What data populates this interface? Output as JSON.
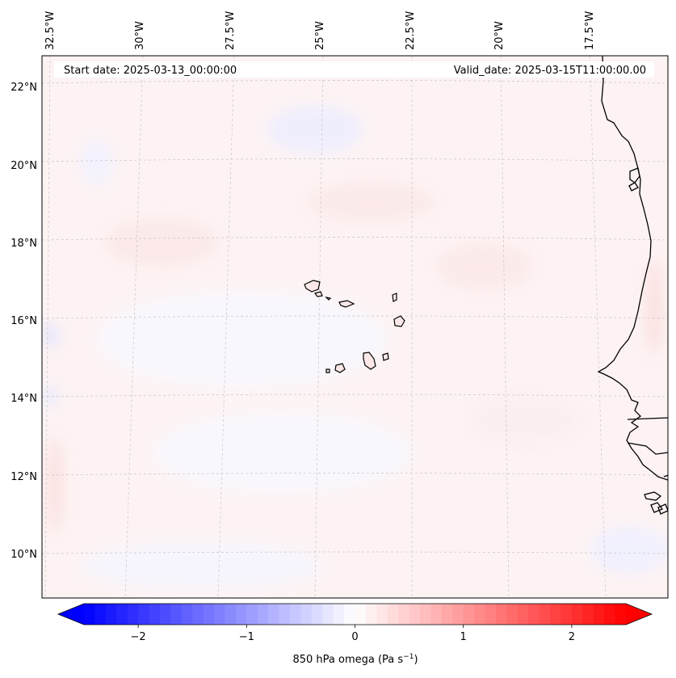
{
  "map": {
    "start_date_label": "Start date: 2025-03-13_00:00:00",
    "valid_date_label": "Valid_date: 2025-03-15T11:00:00.00",
    "lon_labels": [
      "32.5°W",
      "30°W",
      "27.5°W",
      "25°W",
      "22.5°W",
      "20°W",
      "17.5°W"
    ],
    "lat_labels": [
      "22°N",
      "20°N",
      "18°N",
      "16°N",
      "14°N",
      "12°N",
      "10°N"
    ],
    "coastline_color": "#000000",
    "gridline_color": "#bbbbbb"
  },
  "colorbar": {
    "label_prefix": "850 hPa omega (Pa s",
    "label_exp": "−1",
    "label_suffix": ")",
    "ticks": [
      "−2",
      "−1",
      "0",
      "1",
      "2"
    ],
    "tick_values": [
      -2,
      -1,
      0,
      1,
      2
    ],
    "vmin": -2.5,
    "vmax": 2.5,
    "cmap": "bwr",
    "low_color": "#0000ff",
    "mid_color": "#ffffff",
    "high_color": "#ff0000",
    "levels": 50
  }
}
